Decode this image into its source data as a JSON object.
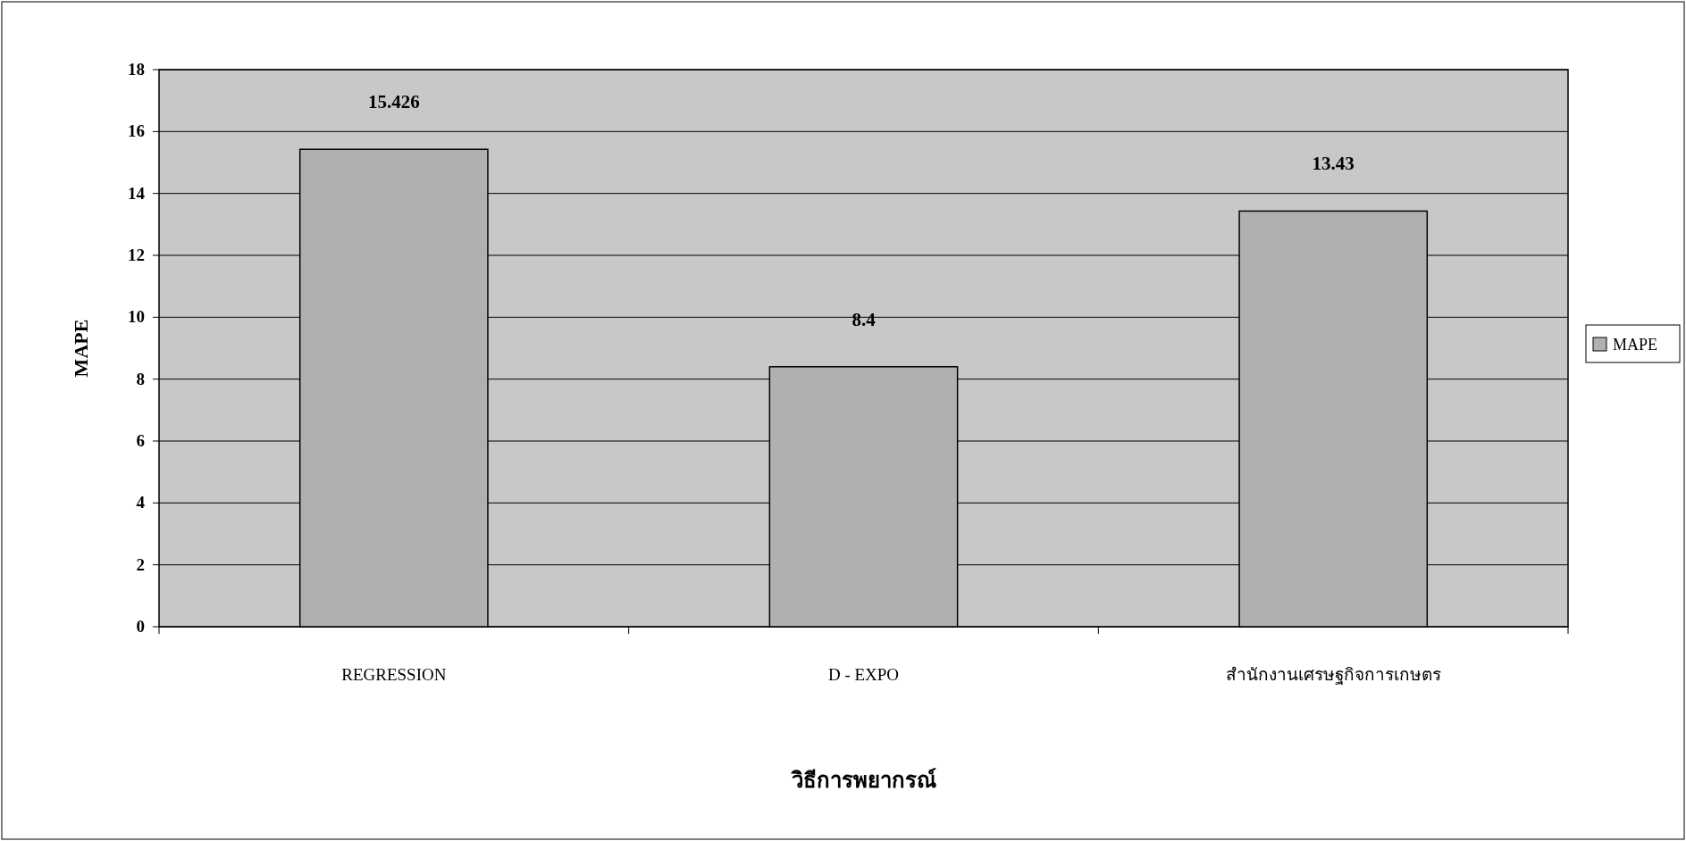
{
  "chart_data": {
    "type": "bar",
    "xlabel": "วิธีการพยากรณ์",
    "ylabel": "MAPE",
    "categories": [
      "REGRESSION",
      "D - EXPO",
      "สำนักงานเศรษฐกิจการเกษตร"
    ],
    "series": [
      {
        "name": "MAPE",
        "color": "#b0b0b0",
        "values": [
          15.426,
          8.4,
          13.43
        ]
      }
    ],
    "ylim": [
      0,
      18
    ],
    "yticks": [
      0,
      2,
      4,
      6,
      8,
      10,
      12,
      14,
      16,
      18
    ],
    "grid": "y",
    "legend": "right",
    "data_labels": true
  }
}
